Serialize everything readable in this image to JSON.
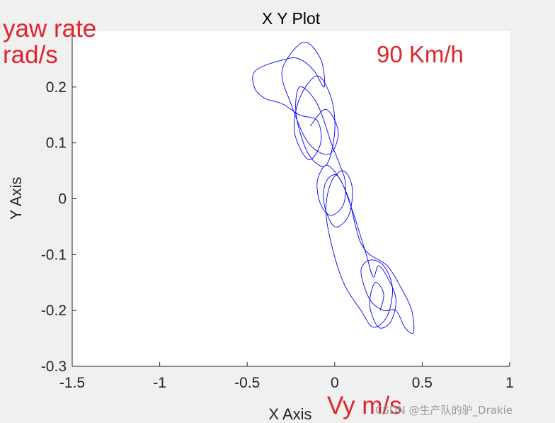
{
  "chart_data": {
    "type": "line",
    "title": "X Y Plot",
    "xlabel": "X Axis",
    "ylabel": "Y Axis",
    "xlim": [
      -1.5,
      1
    ],
    "ylim": [
      -0.3,
      0.3
    ],
    "xticks": [
      "-1.5",
      "-1",
      "-0.5",
      "0",
      "0.5",
      "1"
    ],
    "yticks": [
      "-0.3",
      "-0.2",
      "-0.1",
      "0",
      "0.1",
      "0.2"
    ],
    "grid": false,
    "series": [
      {
        "color": "#0000ff",
        "x": [
          -0.14,
          -0.05,
          0.02,
          -0.03,
          -0.15,
          -0.25,
          -0.3,
          -0.18,
          -0.08,
          -0.06,
          -0.12,
          -0.2,
          -0.28,
          -0.45,
          -0.46,
          -0.4,
          -0.3,
          -0.2,
          -0.1,
          -0.08,
          -0.15,
          -0.23,
          -0.2,
          -0.1,
          -0.02,
          0.0,
          -0.05,
          -0.15,
          -0.22,
          -0.2,
          -0.1,
          -0.02,
          0.03,
          0.06,
          0.05,
          -0.02,
          -0.08,
          -0.1,
          -0.05,
          0.02,
          0.08,
          0.12,
          0.15,
          0.2,
          0.3,
          0.38,
          0.44,
          0.45,
          0.4,
          0.35,
          0.28,
          0.2,
          0.15,
          0.2,
          0.28,
          0.33,
          0.3,
          0.22,
          0.15,
          0.05,
          -0.02,
          -0.05,
          -0.02,
          0.05,
          0.1,
          0.08,
          0.0,
          -0.06,
          -0.05,
          0.02,
          0.1,
          0.18,
          0.22,
          0.25,
          0.3,
          0.35,
          0.32,
          0.25,
          0.2,
          0.23,
          0.28,
          0.26
        ],
        "y": [
          0.13,
          0.16,
          0.12,
          0.08,
          0.1,
          0.17,
          0.23,
          0.28,
          0.25,
          0.2,
          0.23,
          0.25,
          0.25,
          0.23,
          0.2,
          0.18,
          0.17,
          0.15,
          0.14,
          0.1,
          0.07,
          0.12,
          0.18,
          0.22,
          0.18,
          0.12,
          0.06,
          0.08,
          0.15,
          0.2,
          0.17,
          0.1,
          0.06,
          0.03,
          -0.01,
          -0.03,
          -0.01,
          0.03,
          0.06,
          0.04,
          0.0,
          -0.05,
          -0.08,
          -0.1,
          -0.12,
          -0.16,
          -0.2,
          -0.24,
          -0.23,
          -0.2,
          -0.2,
          -0.18,
          -0.13,
          -0.11,
          -0.12,
          -0.16,
          -0.21,
          -0.23,
          -0.2,
          -0.15,
          -0.08,
          -0.02,
          0.03,
          0.05,
          0.02,
          -0.03,
          -0.05,
          -0.01,
          0.03,
          0.04,
          -0.02,
          -0.1,
          -0.14,
          -0.12,
          -0.14,
          -0.18,
          -0.22,
          -0.23,
          -0.19,
          -0.15,
          -0.17,
          -0.2
        ]
      }
    ]
  },
  "annotations": {
    "yaw_rate_line1": "yaw rate",
    "yaw_rate_line2": "rad/s",
    "speed": "90 Km/h",
    "vy": "Vy m/s",
    "annotation_color": "#e0242b"
  },
  "watermark": "CSDN @生产队的驴_Drakie"
}
